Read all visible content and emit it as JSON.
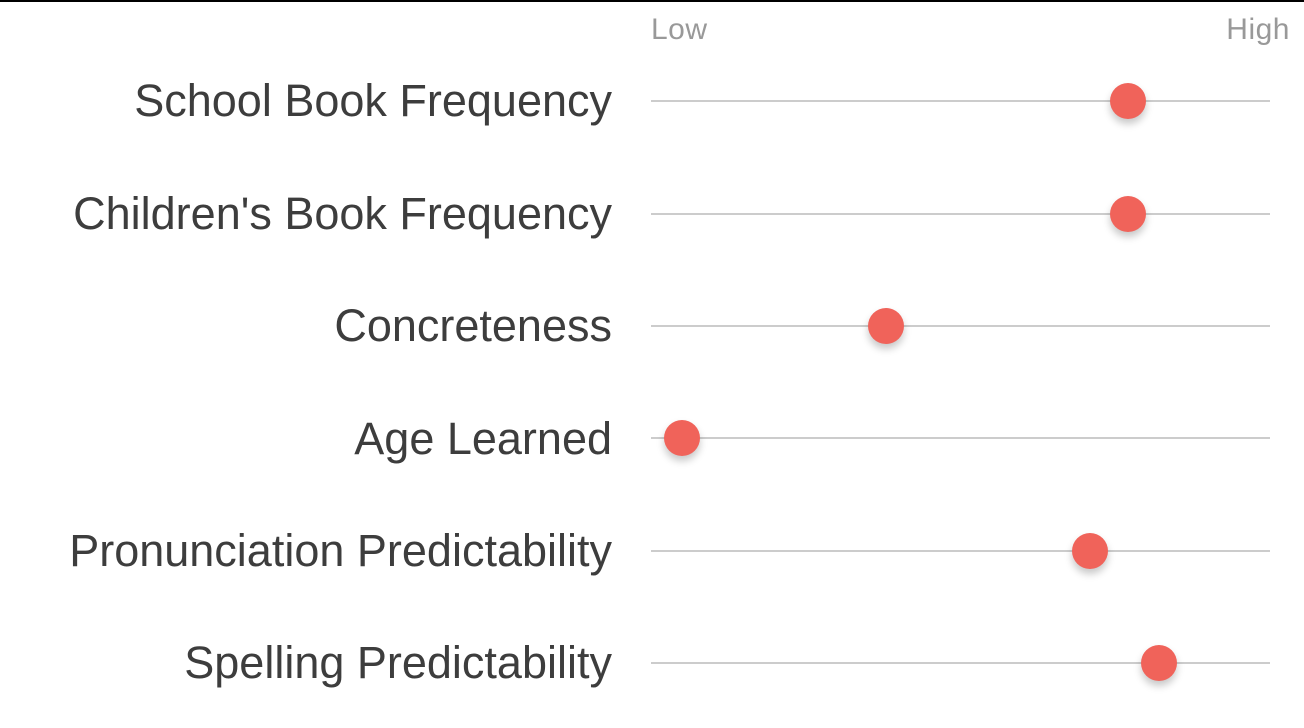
{
  "page": {
    "background": "#ffffff",
    "top_edge_color": "#000000"
  },
  "chart_data": {
    "type": "scatter",
    "subtype": "dot-plot",
    "title": "",
    "scale_labels": {
      "low": "Low",
      "high": "High"
    },
    "axis_range": [
      0,
      1
    ],
    "legend": "none",
    "grid": "one horizontal track line per category row",
    "categories": [
      "School Book Frequency",
      "Children's Book Frequency",
      "Concreteness",
      "Age Learned",
      "Pronunciation Predictability",
      "Spelling Predictability"
    ],
    "values": [
      0.77,
      0.77,
      0.38,
      0.05,
      0.71,
      0.82
    ],
    "dot_color": "#f0635a",
    "track_color": "#cccccc",
    "label_color": "#3d3d3d",
    "scale_label_color": "#999999"
  }
}
